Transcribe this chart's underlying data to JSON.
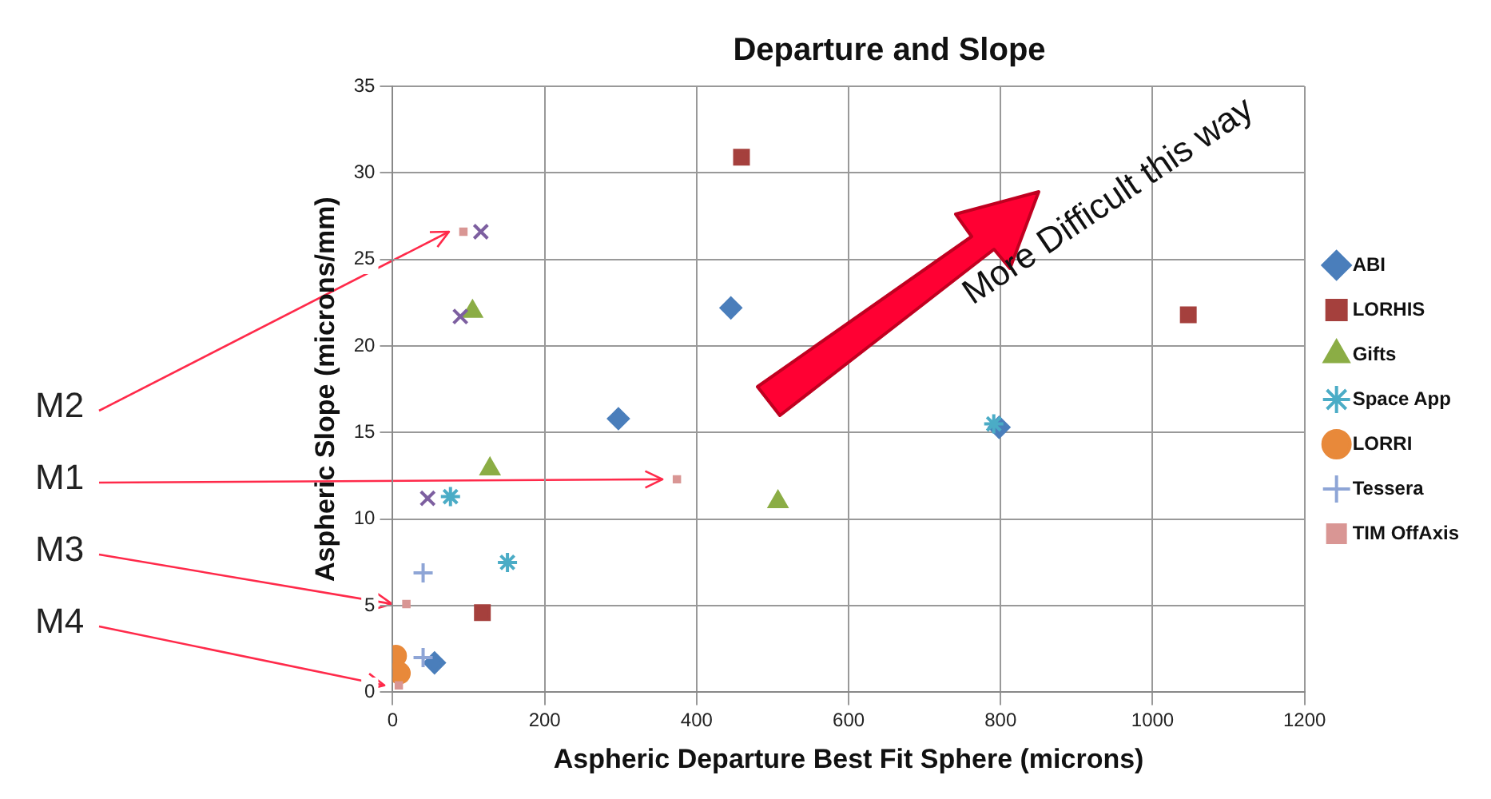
{
  "chart_data": {
    "type": "scatter",
    "title": "Departure and Slope",
    "xlabel": "Aspheric Departure Best Fit Sphere (microns)",
    "ylabel": "Aspheric Slope (microns/mm)",
    "xlim": [
      0,
      1200
    ],
    "xticks": [
      0,
      200,
      400,
      600,
      800,
      1000,
      1200
    ],
    "ylim": [
      0,
      35
    ],
    "yticks": [
      0,
      5,
      10,
      15,
      20,
      25,
      30,
      35
    ],
    "grid": true,
    "legend": "right",
    "series": [
      {
        "name": "ABI",
        "color": "#4a7ebb",
        "marker": "diamond",
        "x": [
          55,
          297,
          445,
          798
        ],
        "values": [
          1.7,
          15.8,
          22.2,
          15.3
        ]
      },
      {
        "name": "LORHIS",
        "color": "#a5403d",
        "marker": "square",
        "x": [
          118,
          459,
          1047
        ],
        "values": [
          4.6,
          30.9,
          21.8
        ]
      },
      {
        "name": "Gifts",
        "color": "#8bad45",
        "marker": "triangle",
        "x": [
          105,
          128,
          507
        ],
        "values": [
          22.0,
          12.9,
          11.0
        ]
      },
      {
        "color": "#7d5fa0",
        "marker": "cross",
        "x": [
          46,
          89,
          116
        ],
        "values": [
          11.2,
          21.7,
          26.6
        ]
      },
      {
        "name": "Space App",
        "color": "#4bacc6",
        "x": [
          76,
          151,
          791
        ],
        "values": [
          11.3,
          7.5,
          15.5
        ]
      },
      {
        "name": "LORRI",
        "color": "#e8893a",
        "marker": "circle",
        "x": [
          4,
          9
        ],
        "values": [
          2.1,
          1.1
        ]
      },
      {
        "name": "Tessera",
        "color": "#8ea5d6",
        "x": [
          40,
          40
        ],
        "values": [
          6.9,
          2.0
        ]
      },
      {
        "name": "TIM OffAxis",
        "color": "#d99694",
        "x": [
          8,
          18,
          93,
          374
        ],
        "values": [
          0.4,
          5.1,
          26.6,
          12.3
        ]
      }
    ],
    "annotations": [
      {
        "text": "M2",
        "x": 93,
        "y": 26.6
      },
      {
        "text": "M1",
        "x": 374,
        "y": 12.3
      },
      {
        "text": "M3",
        "x": 18,
        "y": 5.1
      },
      {
        "text": "M4",
        "x": 8,
        "y": 0.4
      },
      "More Difficult this way"
    ]
  }
}
